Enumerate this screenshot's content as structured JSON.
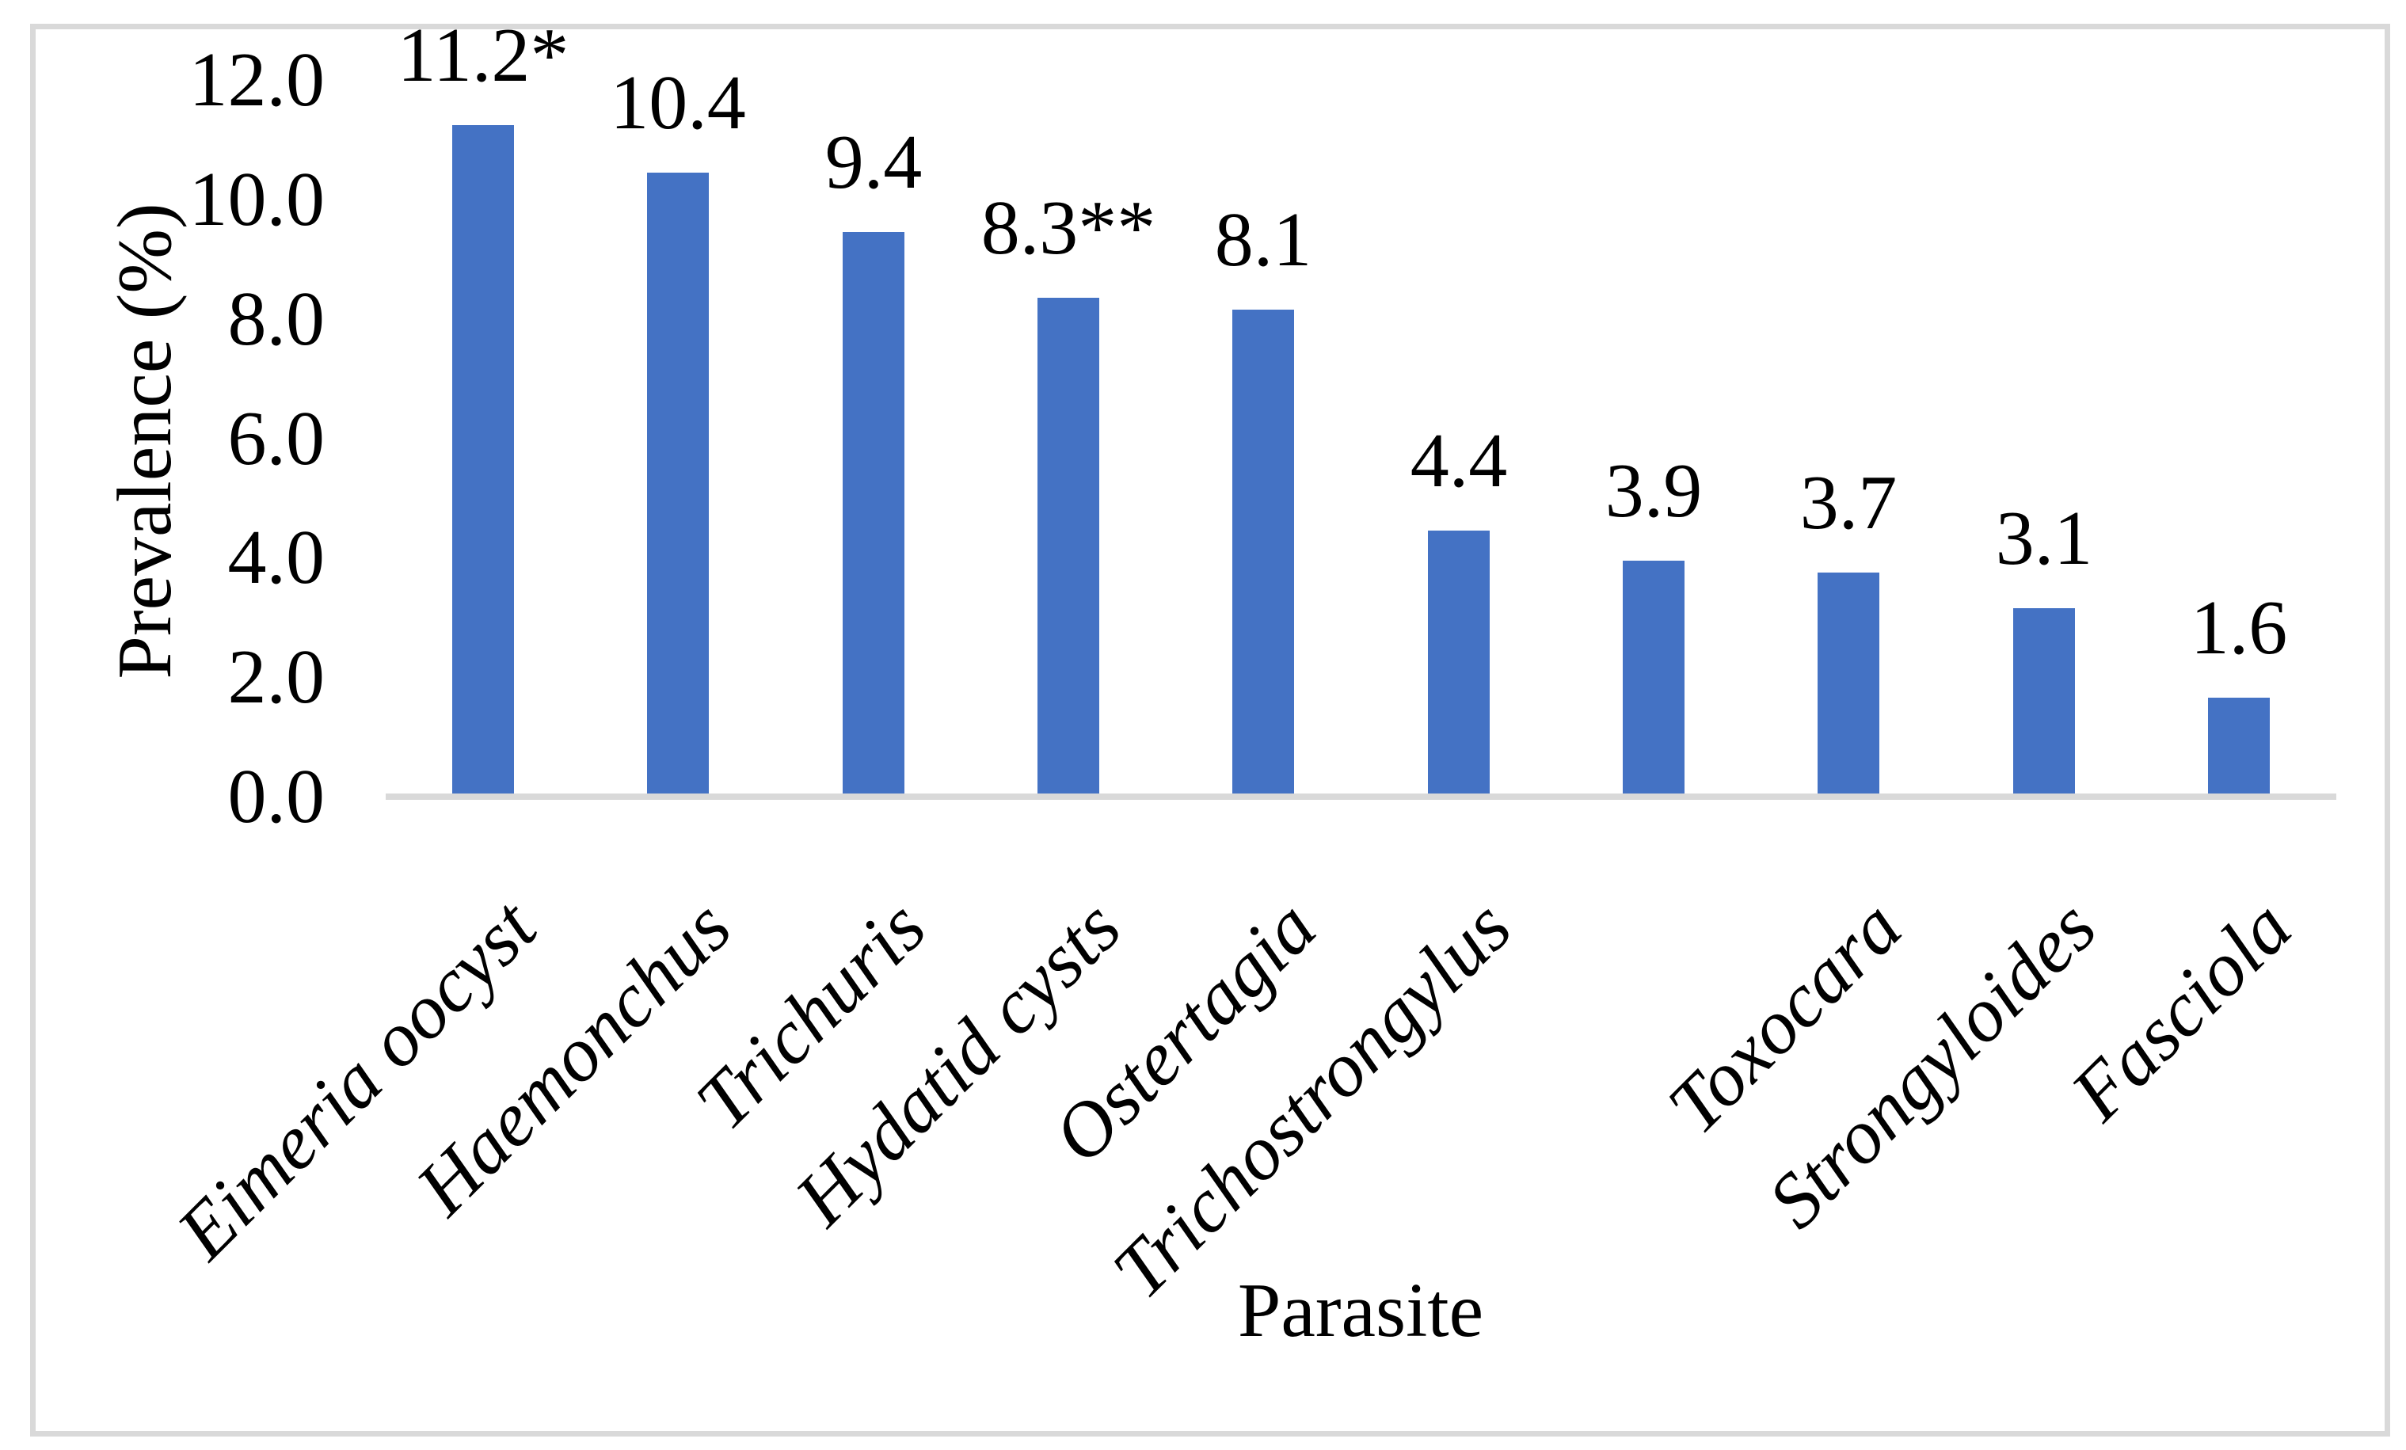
{
  "figure": {
    "background": "#FFFFFF",
    "border_color": "#D9D9D9"
  },
  "chart_data": {
    "type": "bar",
    "title": "",
    "xlabel": "Parasite",
    "ylabel": "Prevalence (%)",
    "ylim": [
      0,
      12
    ],
    "ytick_step": 2,
    "ytick_labels": [
      "0.0",
      "2.0",
      "4.0",
      "6.0",
      "8.0",
      "10.0",
      "12.0"
    ],
    "categories": [
      "Eimeria oocyst",
      "Haemonchus",
      "Trichuris",
      "Hydatid cysts",
      "Ostertagia",
      "Trichostrongylus",
      "",
      "Toxocara",
      "Strongyloides",
      "Fasciola"
    ],
    "values": [
      11.2,
      10.4,
      9.4,
      8.3,
      8.1,
      4.4,
      3.9,
      3.7,
      3.1,
      1.6
    ],
    "bar_labels": [
      "11.2*",
      "10.4",
      "9.4",
      "8.3**",
      "8.1",
      "4.4",
      "3.9",
      "3.7",
      "3.1",
      "1.6"
    ],
    "bar_color": "#4472C4",
    "axis_line_color": "#D9D9D9",
    "grid": false,
    "legend": "none"
  }
}
